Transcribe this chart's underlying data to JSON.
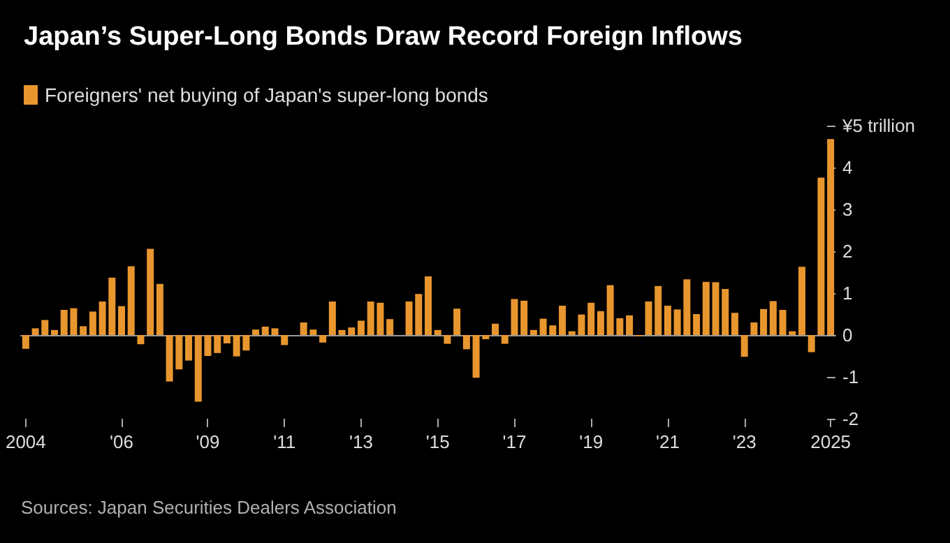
{
  "chart_data": {
    "type": "bar",
    "title": "Japan’s Super-Long Bonds Draw Record Foreign Inflows",
    "categories": [
      "2004",
      null,
      null,
      null,
      null,
      null,
      null,
      null,
      null,
      null,
      "'06",
      null,
      null,
      null,
      null,
      null,
      null,
      null,
      null,
      "'09",
      null,
      null,
      null,
      null,
      null,
      null,
      null,
      "'11",
      null,
      null,
      null,
      null,
      null,
      null,
      null,
      "'13",
      null,
      null,
      null,
      null,
      null,
      null,
      null,
      "'15",
      null,
      null,
      null,
      null,
      null,
      null,
      null,
      "'17",
      null,
      null,
      null,
      null,
      null,
      null,
      null,
      "'19",
      null,
      null,
      null,
      null,
      null,
      null,
      null,
      "'21",
      null,
      null,
      null,
      null,
      null,
      null,
      null,
      "'23",
      null,
      null,
      null,
      null,
      null,
      null,
      null,
      null,
      "2025"
    ],
    "series": [
      {
        "name": "Foreigners' net buying of Japan's super-long bonds",
        "color": "#e8962e",
        "values": [
          -0.33,
          0.16,
          0.36,
          0.12,
          0.6,
          0.64,
          0.21,
          0.56,
          0.8,
          1.37,
          0.69,
          1.64,
          -0.22,
          2.06,
          1.22,
          -1.11,
          -0.82,
          -0.61,
          -1.59,
          -0.5,
          -0.43,
          -0.2,
          -0.51,
          -0.37,
          0.13,
          0.2,
          0.16,
          -0.24,
          0,
          0.3,
          0.13,
          -0.18,
          0.8,
          0.12,
          0.18,
          0.34,
          0.8,
          0.77,
          0.38,
          0,
          0.8,
          0.98,
          1.4,
          0.12,
          -0.21,
          0.63,
          -0.34,
          -1.02,
          -0.1,
          0.27,
          -0.21,
          0.86,
          0.82,
          0.12,
          0.39,
          0.23,
          0.7,
          0.09,
          0.49,
          0.77,
          0.57,
          1.19,
          0.4,
          0.47,
          -0.03,
          0.8,
          1.17,
          0.7,
          0.61,
          1.33,
          0.5,
          1.27,
          1.26,
          1.1,
          0.53,
          -0.52,
          0.3,
          0.62,
          0.81,
          0.6,
          0.09,
          1.63,
          -0.41,
          3.76,
          4.68
        ]
      }
    ],
    "ylim": [
      -2,
      5
    ],
    "yticks": [
      -2,
      -1,
      0,
      1,
      2,
      3,
      4,
      {
        "value": 5,
        "label": "¥5 trillion"
      }
    ],
    "legend": "top left",
    "annotations": [
      "Sources: Japan Securities Dealers Association"
    ]
  }
}
